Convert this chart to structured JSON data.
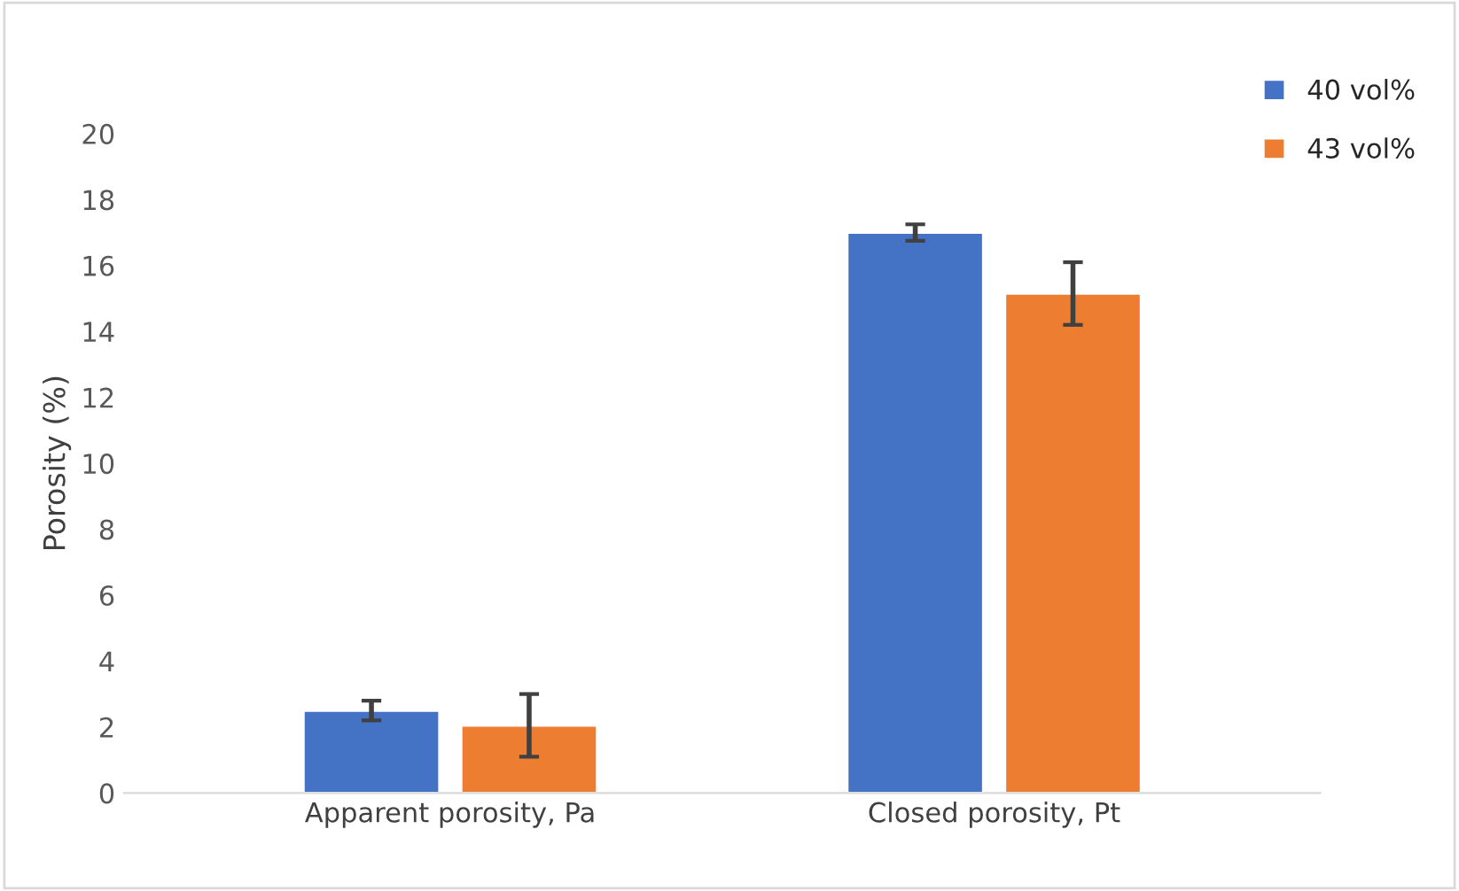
{
  "chart_data": {
    "type": "bar",
    "ylabel": "Porosity (%)",
    "categories": [
      "Apparent porosity, Pa",
      "Closed porosity, Pt"
    ],
    "series": [
      {
        "name": "40 vol%",
        "color": "#4472c4",
        "values": [
          2.5,
          17.0
        ],
        "errors": [
          0.3,
          0.25
        ]
      },
      {
        "name": "43 vol%",
        "color": "#ed7d31",
        "values": [
          2.05,
          15.15
        ],
        "errors": [
          0.95,
          0.95
        ]
      }
    ],
    "ylim": [
      0,
      20
    ],
    "yticks": [
      0,
      2,
      4,
      6,
      8,
      10,
      12,
      14,
      16,
      18,
      20
    ],
    "grid": false,
    "legend": "top right"
  }
}
